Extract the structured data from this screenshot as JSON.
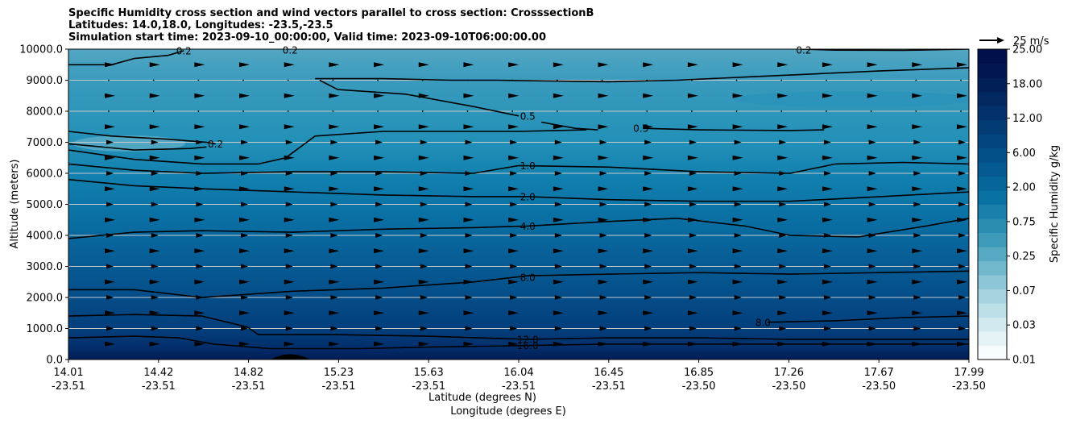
{
  "chart_data": {
    "type": "contour",
    "title": [
      "Specific Humidity cross section and wind vectors parallel to cross section: CrosssectionB",
      "Latitudes: 14.0,18.0, Longitudes: -23.5,-23.5",
      "Simulation start time: 2023-09-10_00:00:00, Valid time: 2023-09-10T06:00:00.00"
    ],
    "ylabel": "Altitude (meters)",
    "xlabel_lat": "Latitude (degrees N)",
    "xlabel_lon": "Longitude (degrees E)",
    "ylim": [
      0,
      10000
    ],
    "y_ticks": [
      "0.0",
      "1000.0",
      "2000.0",
      "3000.0",
      "4000.0",
      "5000.0",
      "6000.0",
      "7000.0",
      "8000.0",
      "9000.0",
      "10000.0"
    ],
    "x_ticks_lat": [
      "14.01",
      "14.42",
      "14.82",
      "15.23",
      "15.63",
      "16.04",
      "16.45",
      "16.85",
      "17.26",
      "17.67",
      "17.99"
    ],
    "x_ticks_lon": [
      "-23.51",
      "-23.51",
      "-23.51",
      "-23.51",
      "-23.51",
      "-23.51",
      "-23.51",
      "-23.50",
      "-23.50",
      "-23.50",
      "-23.50"
    ],
    "grid": "horizontal",
    "colorbar": {
      "label": "Specific Humidity g/kg",
      "tick_labels": [
        "0.01",
        "0.03",
        "0.07",
        "0.25",
        "0.75",
        "2.00",
        "6.00",
        "12.00",
        "18.00",
        "25.00"
      ]
    },
    "quiver_key": "25 m/s",
    "contour_labels": [
      {
        "text": "0.2",
        "x": 14.52,
        "y": 9950
      },
      {
        "text": "0.2",
        "x": 14.99,
        "y": 9980
      },
      {
        "text": "0.2",
        "x": 17.26,
        "y": 9980
      },
      {
        "text": "0.2",
        "x": 14.66,
        "y": 6950
      },
      {
        "text": "0.5",
        "x": 16.04,
        "y": 7850
      },
      {
        "text": "0.5",
        "x": 16.54,
        "y": 7450
      },
      {
        "text": "1.0",
        "x": 16.04,
        "y": 6250
      },
      {
        "text": "2.0",
        "x": 16.04,
        "y": 5250
      },
      {
        "text": "4.0",
        "x": 16.04,
        "y": 4300
      },
      {
        "text": "8.0",
        "x": 16.04,
        "y": 2650
      },
      {
        "text": "8.0",
        "x": 17.08,
        "y": 1200
      },
      {
        "text": "12.0",
        "x": 16.04,
        "y": 650
      },
      {
        "text": "16.0",
        "x": 16.04,
        "y": 450
      }
    ],
    "contours": [
      {
        "level": "0.2",
        "points": [
          [
            14.01,
            9500
          ],
          [
            14.2,
            9500
          ],
          [
            14.3,
            9700
          ],
          [
            14.45,
            9800
          ],
          [
            14.52,
            9950
          ]
        ]
      },
      {
        "level": "0.2",
        "points": [
          [
            17.25,
            10000
          ],
          [
            17.4,
            9970
          ],
          [
            17.7,
            9960
          ],
          [
            17.99,
            10000
          ]
        ]
      },
      {
        "level": "0.2",
        "points": [
          [
            14.01,
            7350
          ],
          [
            14.2,
            7200
          ],
          [
            14.45,
            7100
          ],
          [
            14.62,
            7000
          ],
          [
            14.66,
            6950
          ]
        ]
      },
      {
        "level": "0.2",
        "points": [
          [
            14.01,
            6950
          ],
          [
            14.3,
            6750
          ],
          [
            14.55,
            6800
          ],
          [
            14.62,
            6850
          ]
        ]
      },
      {
        "level": "0.5",
        "points": [
          [
            15.1,
            9050
          ],
          [
            15.4,
            9050
          ],
          [
            15.7,
            9000
          ],
          [
            15.9,
            9000
          ],
          [
            16.1,
            8980
          ],
          [
            16.4,
            8950
          ],
          [
            16.7,
            9000
          ],
          [
            17.0,
            9100
          ],
          [
            17.3,
            9200
          ],
          [
            17.6,
            9300
          ],
          [
            17.99,
            9400
          ]
        ]
      },
      {
        "level": "0.5",
        "points": [
          [
            15.12,
            9000
          ],
          [
            15.2,
            8700
          ],
          [
            15.5,
            8550
          ],
          [
            15.8,
            8150
          ],
          [
            16.0,
            7850
          ]
        ]
      },
      {
        "level": "0.5",
        "points": [
          [
            16.1,
            7650
          ],
          [
            16.25,
            7450
          ],
          [
            16.35,
            7400
          ]
        ]
      },
      {
        "level": "0.5",
        "points": [
          [
            14.01,
            6750
          ],
          [
            14.3,
            6450
          ],
          [
            14.6,
            6300
          ],
          [
            14.85,
            6300
          ],
          [
            14.97,
            6500
          ],
          [
            15.1,
            7200
          ],
          [
            15.4,
            7350
          ],
          [
            15.7,
            7350
          ],
          [
            16.0,
            7350
          ],
          [
            16.3,
            7400
          ]
        ]
      },
      {
        "level": "0.5",
        "points": [
          [
            16.55,
            7450
          ],
          [
            16.8,
            7400
          ],
          [
            17.2,
            7380
          ],
          [
            17.35,
            7400
          ]
        ]
      },
      {
        "level": "1.0",
        "points": [
          [
            14.01,
            6300
          ],
          [
            14.3,
            6100
          ],
          [
            14.6,
            6000
          ],
          [
            15.0,
            6050
          ],
          [
            15.4,
            6050
          ],
          [
            15.8,
            6000
          ],
          [
            16.0,
            6250
          ],
          [
            16.4,
            6200
          ],
          [
            16.8,
            6050
          ],
          [
            17.2,
            6000
          ],
          [
            17.4,
            6300
          ],
          [
            17.7,
            6350
          ],
          [
            17.99,
            6300
          ]
        ]
      },
      {
        "level": "2.0",
        "points": [
          [
            14.01,
            5800
          ],
          [
            14.3,
            5600
          ],
          [
            14.6,
            5500
          ],
          [
            15.0,
            5400
          ],
          [
            15.4,
            5300
          ],
          [
            15.8,
            5250
          ],
          [
            16.04,
            5250
          ],
          [
            16.4,
            5150
          ],
          [
            16.8,
            5100
          ],
          [
            17.2,
            5100
          ],
          [
            17.6,
            5250
          ],
          [
            17.99,
            5400
          ]
        ]
      },
      {
        "level": "4.0",
        "points": [
          [
            14.01,
            3900
          ],
          [
            14.3,
            4100
          ],
          [
            14.6,
            4150
          ],
          [
            15.0,
            4100
          ],
          [
            15.4,
            4200
          ],
          [
            15.8,
            4250
          ],
          [
            16.04,
            4300
          ],
          [
            16.4,
            4450
          ],
          [
            16.7,
            4550
          ],
          [
            17.0,
            4300
          ],
          [
            17.2,
            4000
          ],
          [
            17.5,
            3950
          ],
          [
            17.8,
            4300
          ],
          [
            17.99,
            4550
          ]
        ]
      },
      {
        "level": "8.0",
        "points": [
          [
            14.01,
            2250
          ],
          [
            14.3,
            2250
          ],
          [
            14.6,
            2000
          ],
          [
            15.0,
            2200
          ],
          [
            15.4,
            2300
          ],
          [
            15.8,
            2500
          ],
          [
            16.04,
            2700
          ],
          [
            16.4,
            2750
          ],
          [
            16.8,
            2800
          ],
          [
            17.2,
            2750
          ],
          [
            17.6,
            2800
          ],
          [
            17.99,
            2850
          ]
        ]
      },
      {
        "level": "8.0",
        "points": [
          [
            17.1,
            1200
          ],
          [
            17.4,
            1250
          ],
          [
            17.7,
            1350
          ],
          [
            17.99,
            1400
          ]
        ]
      },
      {
        "level": "12.0",
        "points": [
          [
            14.01,
            1400
          ],
          [
            14.3,
            1450
          ],
          [
            14.6,
            1400
          ],
          [
            14.8,
            1050
          ],
          [
            14.85,
            800
          ],
          [
            15.2,
            800
          ],
          [
            15.6,
            750
          ],
          [
            16.04,
            650
          ],
          [
            16.4,
            700
          ],
          [
            16.8,
            700
          ],
          [
            17.2,
            650
          ],
          [
            17.99,
            650
          ]
        ]
      },
      {
        "level": "16.0",
        "points": [
          [
            14.01,
            700
          ],
          [
            14.3,
            750
          ],
          [
            14.5,
            700
          ],
          [
            14.65,
            500
          ],
          [
            14.9,
            350
          ],
          [
            15.3,
            350
          ],
          [
            15.6,
            400
          ],
          [
            16.04,
            450
          ],
          [
            16.4,
            500
          ],
          [
            16.8,
            500
          ],
          [
            17.2,
            500
          ],
          [
            17.99,
            500
          ]
        ]
      }
    ]
  }
}
